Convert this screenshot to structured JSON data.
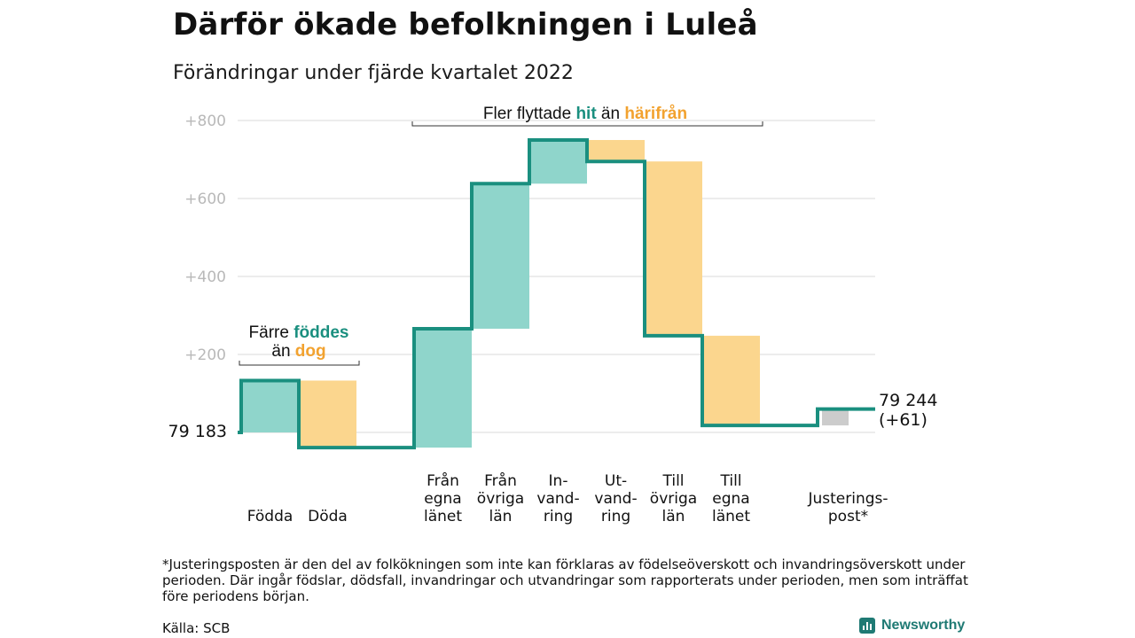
{
  "title": "Därför ökade befolkningen i Luleå",
  "subtitle": "Förändringar under fjärde kvartalet 2022",
  "footnote": "*Justeringsposten är den del av folkökningen som inte kan förklaras av födelseöverskott och invandringsöverskott under perioden. Där ingår födslar, dödsfall, invandringar och utvandringar som rapporterats under perioden, men som inträffat före periodens början.",
  "source": "Källa: SCB",
  "brand": "Newsworthy",
  "colors": {
    "increase": "#8fd5cb",
    "decrease": "#fbd68e",
    "adjustment": "#cccccc",
    "line": "#1a8f7f",
    "teal_text": "#1a8f7f",
    "orange_text": "#f2a22f",
    "grid": "#d9d9d9"
  },
  "annotations": {
    "births": {
      "line1_pre": "Färre ",
      "line1_em": "föddes",
      "line2_pre": "än ",
      "line2_em": "dog"
    },
    "migration": {
      "pre": "Fler flyttade ",
      "em1": "hit",
      "mid": " än ",
      "em2": "härifrån"
    }
  },
  "chart_data": {
    "type": "waterfall",
    "y_ticks": [
      {
        "value": 200,
        "label": "+200"
      },
      {
        "value": 400,
        "label": "+400"
      },
      {
        "value": 600,
        "label": "+600"
      },
      {
        "value": 800,
        "label": "+800"
      }
    ],
    "ylim": [
      -40,
      820
    ],
    "start": {
      "value": 0,
      "label": "79 183"
    },
    "end": {
      "value": 61,
      "label_line1": "79 244",
      "label_line2": "(+61)"
    },
    "steps": [
      {
        "category": [
          "Födda"
        ],
        "change": 133,
        "kind": "increase"
      },
      {
        "category": [
          "Döda"
        ],
        "change": -172,
        "kind": "decrease"
      },
      {
        "category": [],
        "change": 0,
        "kind": "gap"
      },
      {
        "category": [
          "Från",
          "egna",
          "länet"
        ],
        "change": 305,
        "kind": "increase"
      },
      {
        "category": [
          "Från",
          "övriga",
          "län"
        ],
        "change": 372,
        "kind": "increase"
      },
      {
        "category": [
          "In-",
          "vand-",
          "ring"
        ],
        "change": 112,
        "kind": "increase"
      },
      {
        "category": [
          "Ut-",
          "vand-",
          "ring"
        ],
        "change": -55,
        "kind": "decrease"
      },
      {
        "category": [
          "Till",
          "övriga",
          "län"
        ],
        "change": -447,
        "kind": "decrease"
      },
      {
        "category": [
          "Till",
          "egna",
          "länet"
        ],
        "change": -230,
        "kind": "decrease"
      },
      {
        "category": [],
        "change": 0,
        "kind": "gap"
      },
      {
        "category": [
          "Justerings-",
          "post*"
        ],
        "change": 42,
        "kind": "adjustment"
      }
    ]
  }
}
